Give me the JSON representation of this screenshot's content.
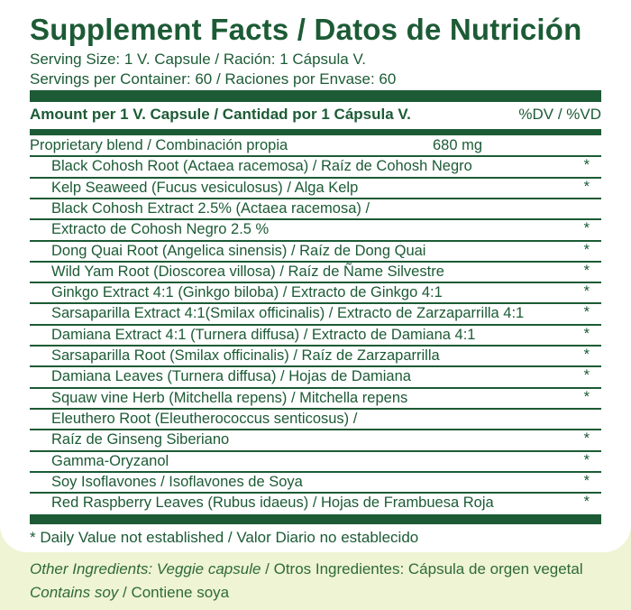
{
  "title": "Supplement Facts / Datos de Nutrición",
  "serving_size": "Serving Size: 1 V. Capsule / Ración: 1 Cápsula V.",
  "servings_per_container": "Servings per Container: 60 / Raciones por Envase: 60",
  "amount_header": "Amount per 1 V. Capsule / Cantidad por 1 Cápsula V.",
  "dv_header": "%DV / %VD",
  "rows": [
    {
      "name": "Proprietary blend / Combinación propia",
      "qty": "680 mg",
      "star": "",
      "indent": false
    },
    {
      "name": "Black Cohosh Root (Actaea racemosa) / Raíz de Cohosh Negro",
      "qty": "",
      "star": "*",
      "indent": true
    },
    {
      "name": "Kelp Seaweed (Fucus vesiculosus) / Alga Kelp",
      "qty": "",
      "star": "*",
      "indent": true
    },
    {
      "name": "Black Cohosh Extract 2.5% (Actaea racemosa) /",
      "qty": "",
      "star": "",
      "indent": true
    },
    {
      "name": "Extracto de Cohosh Negro 2.5 %",
      "qty": "",
      "star": "*",
      "indent": true
    },
    {
      "name": "Dong Quai Root (Angelica sinensis) / Raíz de Dong Quai",
      "qty": "",
      "star": "*",
      "indent": true
    },
    {
      "name": "Wild Yam Root (Dioscorea villosa) / Raíz de Ñame Silvestre",
      "qty": "",
      "star": "*",
      "indent": true
    },
    {
      "name": "Ginkgo Extract 4:1 (Ginkgo biloba) / Extracto de Ginkgo 4:1",
      "qty": "",
      "star": "*",
      "indent": true
    },
    {
      "name": "Sarsaparilla Extract 4:1(Smilax officinalis) / Extracto de Zarzaparrilla 4:1",
      "qty": "",
      "star": "*",
      "indent": true
    },
    {
      "name": "Damiana Extract 4:1 (Turnera diffusa) / Extracto de Damiana 4:1",
      "qty": "",
      "star": "*",
      "indent": true
    },
    {
      "name": "Sarsaparilla Root (Smilax officinalis) / Raíz de Zarzaparrilla",
      "qty": "",
      "star": "*",
      "indent": true
    },
    {
      "name": "Damiana Leaves (Turnera diffusa) / Hojas de Damiana",
      "qty": "",
      "star": "*",
      "indent": true
    },
    {
      "name": "Squaw vine Herb (Mitchella repens) / Mitchella repens",
      "qty": "",
      "star": "*",
      "indent": true
    },
    {
      "name": "Eleuthero Root (Eleutherococcus senticosus) /",
      "qty": "",
      "star": "",
      "indent": true
    },
    {
      "name": "Raíz de Ginseng Siberiano",
      "qty": "",
      "star": "*",
      "indent": true
    },
    {
      "name": "Gamma-Oryzanol",
      "qty": "",
      "star": "*",
      "indent": true
    },
    {
      "name": "Soy Isoflavones / Isoflavones de Soya",
      "qty": "",
      "star": "*",
      "indent": true
    },
    {
      "name": "Red Raspberry Leaves (Rubus idaeus) / Hojas de Frambuesa Roja",
      "qty": "",
      "star": "*",
      "indent": true
    }
  ],
  "footnote": "* Daily Value not established / Valor Diario no establecido",
  "other_ingredients_label": "Other Ingredients: Veggie capsule",
  "other_ingredients_es": " / Otros Ingredientes: Cápsula de orgen vegetal",
  "contains_label": "Contains soy",
  "contains_es": " / Contiene soya",
  "colors": {
    "text": "#1c5b35",
    "background": "#eef4d4",
    "panel": "#ffffff"
  }
}
